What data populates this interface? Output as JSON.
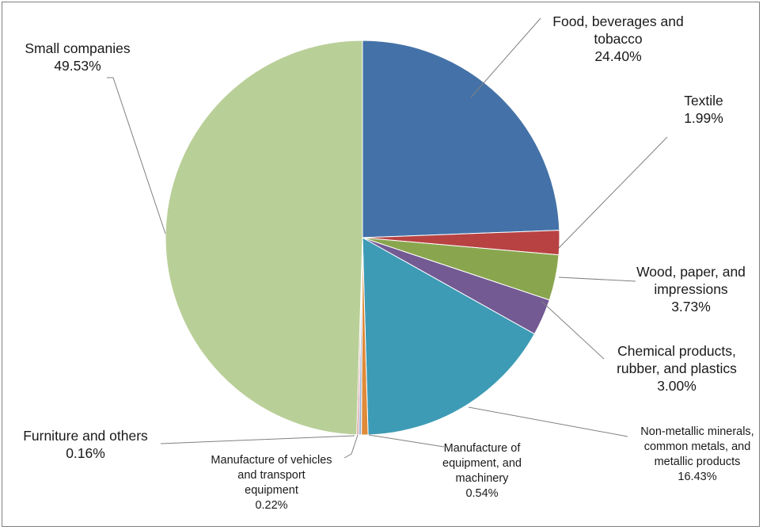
{
  "chart_data": {
    "type": "pie",
    "title": "",
    "start_angle_deg": 0,
    "direction": "clockwise",
    "slices": [
      {
        "name": "Food, beverages and tobacco",
        "value": 24.4,
        "label": "24.40%",
        "color": "#4472a8"
      },
      {
        "name": "Textile",
        "value": 1.99,
        "label": "1.99%",
        "color": "#b84242"
      },
      {
        "name": "Wood, paper, and impressions",
        "value": 3.73,
        "label": "3.73%",
        "color": "#89a64e"
      },
      {
        "name": "Chemical products, rubber, and plastics",
        "value": 3.0,
        "label": "3.00%",
        "color": "#735a93"
      },
      {
        "name": "Non-metallic minerals, common metals, and metallic products",
        "value": 16.43,
        "label": "16.43%",
        "color": "#3d9bb5"
      },
      {
        "name": "Manufacture of equipment, and machinery",
        "value": 0.54,
        "label": "0.54%",
        "color": "#e08a39"
      },
      {
        "name": "Manufacture of vehicles and transport equipment",
        "value": 0.22,
        "label": "0.22%",
        "color": "#9bb4d8"
      },
      {
        "name": "Furniture and others",
        "value": 0.16,
        "label": "0.16%",
        "color": "#d99494"
      },
      {
        "name": "Small companies",
        "value": 49.53,
        "label": "49.53%",
        "color": "#b9cf98"
      }
    ]
  },
  "labels": [
    {
      "lines": [
        "Food, beverages and",
        "tobacco",
        "24.40%"
      ]
    },
    {
      "lines": [
        "Textile",
        "1.99%"
      ]
    },
    {
      "lines": [
        "Wood, paper, and",
        "impressions",
        "3.73%"
      ]
    },
    {
      "lines": [
        "Chemical products,",
        "rubber, and plastics",
        "3.00%"
      ]
    },
    {
      "lines": [
        "Non-metallic minerals,",
        "common metals, and",
        "metallic products",
        "16.43%"
      ]
    },
    {
      "lines": [
        "Manufacture of",
        "equipment, and",
        "machinery",
        "0.54%"
      ]
    },
    {
      "lines": [
        "Manufacture of vehicles",
        "and transport",
        "equipment",
        "0.22%"
      ]
    },
    {
      "lines": [
        "Furniture and others",
        "0.16%"
      ]
    },
    {
      "lines": [
        "Small companies",
        "49.53%"
      ]
    }
  ]
}
